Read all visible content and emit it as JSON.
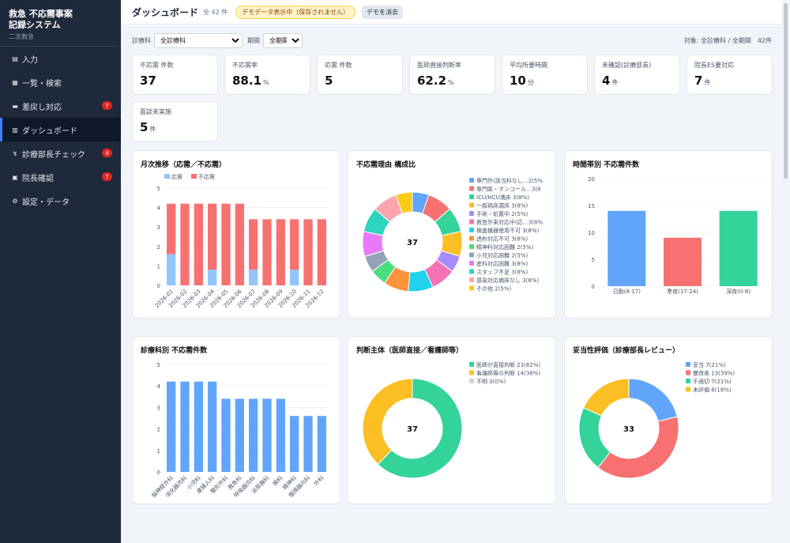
{
  "app": {
    "title_line1": "救急 不応需事案",
    "title_line2": "記録システム",
    "subtitle": "二次救急"
  },
  "nav": [
    {
      "label": "入力",
      "icon": "document-icon",
      "badge": ""
    },
    {
      "label": "一覧・検索",
      "icon": "clipboard-icon",
      "badge": ""
    },
    {
      "label": "差戻し対応",
      "icon": "inbox-icon",
      "badge": "7"
    },
    {
      "label": "ダッシュボード",
      "icon": "bar-chart-icon",
      "badge": "",
      "active": true
    },
    {
      "label": "診療部長チェック",
      "icon": "person-check-icon",
      "badge": "4"
    },
    {
      "label": "院長確認",
      "icon": "building-icon",
      "badge": "7"
    },
    {
      "label": "設定・データ",
      "icon": "gear-icon",
      "badge": ""
    }
  ],
  "header": {
    "title": "ダッシュボード",
    "count": "全 42 件",
    "demo_notice": "デモデータ表示中（保存されません）",
    "clear_button": "デモを消去"
  },
  "filters": {
    "dept_label": "診療科",
    "dept_value": "全診療科",
    "period_label": "期間",
    "period_value": "全期間",
    "summary": "対象: 全診療科 / 全期間　42件"
  },
  "kpis": [
    {
      "label": "不応需 件数",
      "value": "37",
      "unit": ""
    },
    {
      "label": "不応需率",
      "value": "88.1",
      "unit": "%"
    },
    {
      "label": "応需 件数",
      "value": "5",
      "unit": ""
    },
    {
      "label": "医師直接判断率",
      "value": "62.2",
      "unit": "%"
    },
    {
      "label": "平均所要時間",
      "value": "10",
      "unit": "分"
    },
    {
      "label": "未確認(診療部長)",
      "value": "4",
      "unit": "件"
    },
    {
      "label": "院長ES要対応",
      "value": "7",
      "unit": "件"
    },
    {
      "label": "面談未実施",
      "value": "5",
      "unit": "件"
    }
  ],
  "colors": {
    "blue": "#60a5fa",
    "red": "#f87171",
    "sidebar": "#1e293b",
    "accent": "#3b82f6"
  },
  "chart_data": [
    {
      "id": "monthly",
      "type": "bar",
      "stacked": true,
      "title": "月次推移（応需／不応需）",
      "categories": [
        "2026-01",
        "2026-02",
        "2026-03",
        "2026-04",
        "2026-05",
        "2026-06",
        "2026-07",
        "2026-08",
        "2026-09",
        "2026-10",
        "2026-11",
        "2026-12"
      ],
      "series": [
        {
          "name": "応需",
          "color": "#93c5fd",
          "values": [
            1.6,
            0,
            0,
            0.8,
            0,
            0,
            0.8,
            0,
            0,
            0.8,
            0,
            0
          ]
        },
        {
          "name": "不応需",
          "color": "#f87171",
          "values": [
            2.6,
            4.2,
            4.2,
            3.4,
            4.2,
            4.2,
            2.6,
            3.4,
            3.4,
            2.6,
            3.4,
            3.4
          ]
        }
      ],
      "yticks": [
        "0",
        "1",
        "2",
        "3",
        "4",
        "5"
      ],
      "ylim": [
        0,
        5
      ],
      "legend": "top"
    },
    {
      "id": "reasons",
      "type": "pie",
      "donut": true,
      "title": "不応需理由 構成比",
      "center": "37",
      "slices": [
        {
          "label": "専門外(該当科なし…2(5%",
          "value": 2,
          "color": "#60a5fa"
        },
        {
          "label": "専門医・オンコール…3(8",
          "value": 3,
          "color": "#f87171"
        },
        {
          "label": "ICU/HCU満床 3(8%)",
          "value": 3,
          "color": "#34d399"
        },
        {
          "label": "一般病床満床 3(8%)",
          "value": 3,
          "color": "#fbbf24"
        },
        {
          "label": "手術・処置中 2(5%)",
          "value": 2,
          "color": "#a78bfa"
        },
        {
          "label": "救急外来対応中(応…3(8%",
          "value": 3,
          "color": "#f472b6"
        },
        {
          "label": "検査機器使用不可 3(8%)",
          "value": 3,
          "color": "#22d3ee"
        },
        {
          "label": "透析対応不可 3(8%)",
          "value": 3,
          "color": "#fb923c"
        },
        {
          "label": "精神科対応困難 2(5%)",
          "value": 2,
          "color": "#4ade80"
        },
        {
          "label": "小児対応困難 2(5%)",
          "value": 2,
          "color": "#94a3b8"
        },
        {
          "label": "産科対応困難 3(8%)",
          "value": 3,
          "color": "#e879f9"
        },
        {
          "label": "スタッフ不足 3(8%)",
          "value": 3,
          "color": "#2dd4bf"
        },
        {
          "label": "感染対応病床なし 3(8%)",
          "value": 3,
          "color": "#fda4af"
        },
        {
          "label": "その他 2(5%)",
          "value": 2,
          "color": "#facc15"
        }
      ]
    },
    {
      "id": "timeband",
      "type": "bar",
      "title": "時間帯別 不応需件数",
      "categories": [
        "日勤(8-17)",
        "準夜(17-24)",
        "深夜(0-8)"
      ],
      "values": [
        14,
        9,
        14
      ],
      "colors": [
        "#60a5fa",
        "#f87171",
        "#34d399"
      ],
      "yticks": [
        "0",
        "5",
        "10",
        "15",
        "20"
      ],
      "ylim": [
        0,
        20
      ]
    },
    {
      "id": "dept",
      "type": "bar",
      "title": "診療科別 不応需件数",
      "categories": [
        "脳神経外科",
        "消化器内科",
        "小児科",
        "産婦人科",
        "整形外科",
        "救急科",
        "呼吸器内科",
        "泌尿器科",
        "眼科",
        "精神科",
        "循環器内科",
        "外科"
      ],
      "values": [
        4.2,
        4.2,
        4.2,
        4.2,
        3.4,
        3.4,
        3.4,
        3.4,
        3.4,
        2.6,
        2.6,
        2.6
      ],
      "color": "#60a5fa",
      "yticks": [
        "0",
        "1",
        "2",
        "3",
        "4",
        "5"
      ],
      "ylim": [
        0,
        5
      ]
    },
    {
      "id": "judge",
      "type": "pie",
      "donut": true,
      "title": "判断主体（医師直接／看護師等）",
      "center": "37",
      "slices": [
        {
          "label": "医師が直接判断 23(62%)",
          "value": 23,
          "color": "#34d399"
        },
        {
          "label": "看護師等の判断 14(38%)",
          "value": 14,
          "color": "#fbbf24"
        },
        {
          "label": "不明 0(0%)",
          "value": 0,
          "color": "#cbd5e1"
        }
      ]
    },
    {
      "id": "review",
      "type": "pie",
      "donut": true,
      "title": "妥当性評価（診療部長レビュー）",
      "center": "33",
      "slices": [
        {
          "label": "妥当 7(21%)",
          "value": 7,
          "color": "#60a5fa"
        },
        {
          "label": "要改善 13(39%)",
          "value": 13,
          "color": "#f87171"
        },
        {
          "label": "不適切 7(21%)",
          "value": 7,
          "color": "#34d399"
        },
        {
          "label": "未評価 6(18%)",
          "value": 6,
          "color": "#fbbf24"
        }
      ]
    }
  ]
}
